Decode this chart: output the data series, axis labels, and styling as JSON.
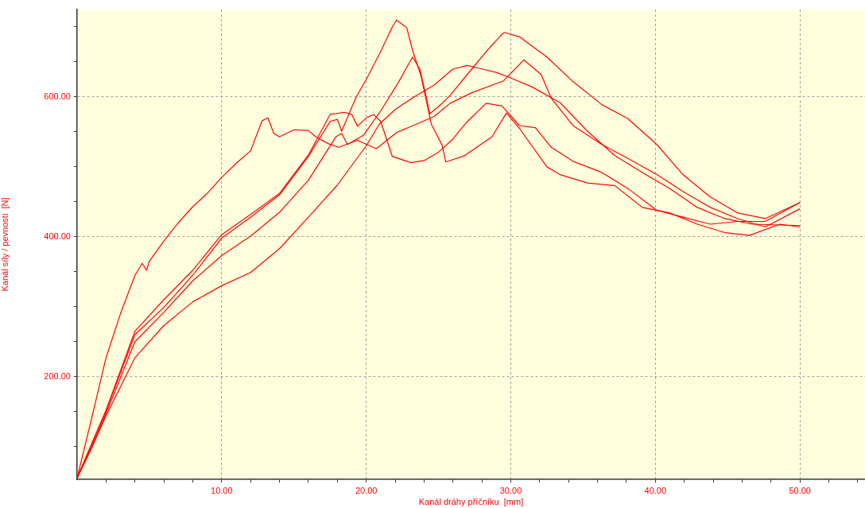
{
  "chart_data": {
    "type": "line",
    "xlabel": "Kanál dráhy příčníku  [mm]",
    "ylabel": "Kanál síly / pevnosti  [N]",
    "xlim": [
      0,
      54.5
    ],
    "ylim": [
      53,
      725
    ],
    "xticks": [
      {
        "value": 2,
        "label": null
      },
      {
        "value": 4,
        "label": null
      },
      {
        "value": 6,
        "label": null
      },
      {
        "value": 8,
        "label": null
      },
      {
        "value": 10,
        "label": "10.00"
      },
      {
        "value": 12,
        "label": null
      },
      {
        "value": 14,
        "label": null
      },
      {
        "value": 16,
        "label": null
      },
      {
        "value": 18,
        "label": null
      },
      {
        "value": 20,
        "label": "20.00"
      },
      {
        "value": 22,
        "label": null
      },
      {
        "value": 24,
        "label": null
      },
      {
        "value": 26,
        "label": null
      },
      {
        "value": 28,
        "label": null
      },
      {
        "value": 30,
        "label": "30.00"
      },
      {
        "value": 32,
        "label": null
      },
      {
        "value": 34,
        "label": null
      },
      {
        "value": 36,
        "label": null
      },
      {
        "value": 38,
        "label": null
      },
      {
        "value": 40,
        "label": "40.00"
      },
      {
        "value": 42,
        "label": null
      },
      {
        "value": 44,
        "label": null
      },
      {
        "value": 46,
        "label": null
      },
      {
        "value": 48,
        "label": null
      },
      {
        "value": 50,
        "label": "50.00"
      },
      {
        "value": 52,
        "label": null
      },
      {
        "value": 54,
        "label": null
      }
    ],
    "yticks": [
      {
        "value": 100,
        "label": null
      },
      {
        "value": 150,
        "label": null
      },
      {
        "value": 200,
        "label": "200.00"
      },
      {
        "value": 250,
        "label": null
      },
      {
        "value": 300,
        "label": null
      },
      {
        "value": 350,
        "label": null
      },
      {
        "value": 400,
        "label": "400.00"
      },
      {
        "value": 450,
        "label": null
      },
      {
        "value": 500,
        "label": null
      },
      {
        "value": 550,
        "label": null
      },
      {
        "value": 600,
        "label": "600.00"
      },
      {
        "value": 650,
        "label": null
      },
      {
        "value": 700,
        "label": null
      }
    ],
    "grid": true,
    "legend": false,
    "marker": "none",
    "line_style": "solid",
    "series": [
      {
        "color": "#ff0000",
        "x": [
          0,
          1,
          2,
          3,
          4,
          4.5,
          4.8,
          5,
          6,
          7,
          8,
          9,
          10,
          11,
          12,
          12.8,
          13.2,
          13.6,
          14,
          15,
          16,
          16.5,
          17.4,
          18.1,
          19.4,
          20.7,
          22.1,
          24.7,
          25.8,
          27.3,
          29.5,
          30.9,
          32.1,
          32.8,
          34.3,
          36.3,
          38.1,
          40.1,
          41.9,
          43.8,
          45.7,
          47.6,
          50
        ],
        "values": [
          55,
          140,
          227,
          290,
          345,
          362,
          352,
          365,
          394,
          420,
          443,
          462,
          485,
          505,
          523,
          566,
          570,
          548,
          543,
          553,
          552,
          543,
          533,
          528,
          538,
          526,
          549,
          572,
          591,
          606,
          623,
          653,
          632,
          598,
          559,
          532,
          512,
          489,
          465,
          442,
          426,
          414,
          440
        ]
      },
      {
        "color": "#ff0000",
        "x": [
          0,
          1,
          2,
          4,
          6,
          8,
          10,
          12,
          14,
          16,
          17.5,
          18,
          18.3,
          19.3,
          20,
          21,
          21.8,
          22.1,
          22.8,
          23.2,
          23.8,
          24.5,
          25.25,
          25.5,
          26.8,
          28.7,
          29.7,
          30.6,
          32.5,
          33.4,
          35.3,
          37.2,
          39.1,
          41,
          42.9,
          44.8,
          46.5,
          48.6,
          50
        ],
        "values": [
          55,
          102,
          151,
          260,
          299,
          345,
          398,
          428,
          460,
          515,
          565,
          568,
          551,
          600,
          625,
          665,
          700,
          710,
          699,
          667,
          629,
          561,
          531,
          507,
          516,
          543,
          577,
          555,
          500,
          489,
          477,
          473,
          442,
          434,
          418,
          406,
          402,
          418,
          414
        ]
      },
      {
        "color": "#ff0000",
        "x": [
          0,
          1,
          2,
          4,
          6,
          8,
          10,
          12,
          14,
          16,
          17.9,
          18.3,
          18.7,
          19.8,
          21,
          22.2,
          23.2,
          23.7,
          24.1,
          24.4,
          25.2,
          25.8,
          27.3,
          28.3,
          29.45,
          29.6,
          30.6,
          32.5,
          34.3,
          36.3,
          38.1,
          40.1,
          41.9,
          43.8,
          45.7,
          47.6,
          50
        ],
        "values": [
          55,
          98,
          147,
          250,
          292,
          337,
          373,
          401,
          435,
          481,
          543,
          548,
          532,
          545,
          580,
          620,
          657,
          640,
          605,
          576,
          590,
          602,
          640,
          665,
          691,
          692,
          686,
          657,
          622,
          589,
          569,
          532,
          489,
          457,
          434,
          426,
          449
        ]
      },
      {
        "color": "#ff0000",
        "x": [
          0,
          1,
          2,
          4,
          6,
          8,
          10,
          12,
          14,
          16,
          17.5,
          18.5,
          19,
          19.4,
          20,
          20.5,
          21,
          21.8,
          23.1,
          24,
          25,
          26,
          27,
          28.3,
          29.4,
          30.6,
          31.7,
          32.8,
          34.3,
          36.3,
          38.1,
          40.1,
          41.9,
          43.8,
          45.7,
          47.6,
          50
        ],
        "values": [
          55,
          104,
          152,
          265,
          310,
          352,
          403,
          432,
          462,
          517,
          575,
          578,
          575,
          558,
          570,
          575,
          565,
          515,
          506,
          509,
          521,
          540,
          565,
          591,
          587,
          559,
          556,
          528,
          508,
          492,
          469,
          438,
          428,
          418,
          422,
          422,
          449
        ]
      },
      {
        "color": "#ff0000",
        "x": [
          0,
          1,
          2,
          4,
          6,
          8,
          10,
          12,
          14,
          16,
          18,
          20,
          20.9,
          22,
          23.3,
          24.7,
          26,
          27,
          28,
          29,
          29.9,
          31.5,
          33.4,
          35.3,
          37.2,
          39.1,
          41,
          42.9,
          44.8,
          46.7,
          50
        ],
        "values": [
          55,
          98,
          144,
          227,
          273,
          307,
          330,
          349,
          383,
          428,
          474,
          530,
          561,
          582,
          600,
          617,
          640,
          645,
          640,
          635,
          628,
          614,
          592,
          551,
          516,
          492,
          469,
          442,
          426,
          418,
          416
        ]
      }
    ]
  }
}
